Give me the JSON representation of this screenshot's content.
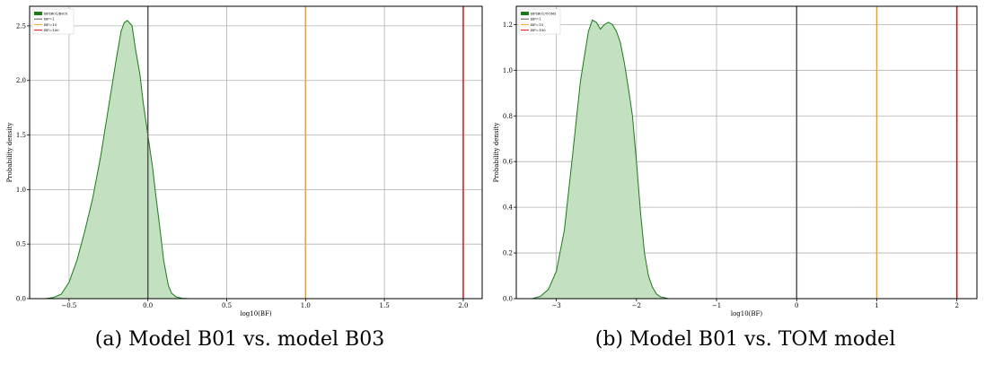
{
  "chart_data": [
    {
      "type": "area",
      "caption": "(a) Model B01 vs. model B03",
      "xlabel": "log10(BF)",
      "ylabel": "Probability density",
      "xlim": [
        -0.75,
        2.12
      ],
      "ylim": [
        0,
        2.68
      ],
      "xticks": [
        -0.5,
        0.0,
        0.5,
        1.0,
        1.5,
        2.0
      ],
      "xtick_labels": [
        "−0.5",
        "0.0",
        "0.5",
        "1.0",
        "1.5",
        "2.0"
      ],
      "yticks": [
        0.0,
        0.5,
        1.0,
        1.5,
        2.0,
        2.5
      ],
      "ytick_labels": [
        "0.0",
        "0.5",
        "1.0",
        "1.5",
        "2.0",
        "2.5"
      ],
      "grid": true,
      "legend_position": "top-left",
      "legend": [
        "BF(B01/B03)",
        "BF=1",
        "BF=10",
        "BF=100"
      ],
      "vlines": [
        {
          "x": 0,
          "color": "#555555"
        },
        {
          "x": 1,
          "color": "#f0a020"
        },
        {
          "x": 2,
          "color": "#e01010"
        }
      ],
      "series": [
        {
          "name": "BF(B01/B03)",
          "color": "#1a7a1a",
          "fill": "#c3e0c0",
          "x": [
            -0.65,
            -0.6,
            -0.55,
            -0.5,
            -0.45,
            -0.4,
            -0.35,
            -0.3,
            -0.25,
            -0.2,
            -0.17,
            -0.15,
            -0.13,
            -0.1,
            -0.08,
            -0.05,
            -0.03,
            0.0,
            0.03,
            0.05,
            0.08,
            0.1,
            0.13,
            0.15,
            0.18,
            0.22,
            0.26
          ],
          "y": [
            0.0,
            0.01,
            0.04,
            0.15,
            0.35,
            0.62,
            0.92,
            1.3,
            1.75,
            2.2,
            2.45,
            2.53,
            2.55,
            2.5,
            2.3,
            2.05,
            1.8,
            1.5,
            1.2,
            0.95,
            0.6,
            0.35,
            0.12,
            0.05,
            0.015,
            0.003,
            0.0
          ]
        }
      ]
    },
    {
      "type": "area",
      "caption": "(b) Model B01 vs. TOM model",
      "xlabel": "log10(BF)",
      "ylabel": "Probability density",
      "xlim": [
        -3.5,
        2.25
      ],
      "ylim": [
        0,
        1.28
      ],
      "xticks": [
        -3,
        -2,
        -1,
        0,
        1,
        2
      ],
      "xtick_labels": [
        "−3",
        "−2",
        "−1",
        "0",
        "1",
        "2"
      ],
      "yticks": [
        0.0,
        0.2,
        0.4,
        0.6,
        0.8,
        1.0,
        1.2
      ],
      "ytick_labels": [
        "0.0",
        "0.2",
        "0.4",
        "0.6",
        "0.8",
        "1.0",
        "1.2"
      ],
      "grid": true,
      "legend_position": "top-left",
      "legend": [
        "BF(B01/TOM)",
        "BF=1",
        "BF=10",
        "BF=100"
      ],
      "vlines": [
        {
          "x": 0,
          "color": "#555555"
        },
        {
          "x": 1,
          "color": "#f0a020"
        },
        {
          "x": 2,
          "color": "#e01010"
        }
      ],
      "series": [
        {
          "name": "BF(B01/TOM)",
          "color": "#1a7a1a",
          "fill": "#c3e0c0",
          "x": [
            -3.3,
            -3.2,
            -3.1,
            -3.0,
            -2.9,
            -2.8,
            -2.7,
            -2.6,
            -2.55,
            -2.5,
            -2.45,
            -2.4,
            -2.35,
            -2.3,
            -2.25,
            -2.2,
            -2.15,
            -2.1,
            -2.05,
            -2.0,
            -1.95,
            -1.9,
            -1.85,
            -1.8,
            -1.75,
            -1.7,
            -1.6
          ],
          "y": [
            0.0,
            0.01,
            0.04,
            0.12,
            0.3,
            0.62,
            0.95,
            1.17,
            1.22,
            1.21,
            1.18,
            1.2,
            1.21,
            1.2,
            1.17,
            1.12,
            1.03,
            0.92,
            0.8,
            0.6,
            0.38,
            0.2,
            0.1,
            0.05,
            0.02,
            0.008,
            0.0
          ]
        }
      ]
    }
  ]
}
